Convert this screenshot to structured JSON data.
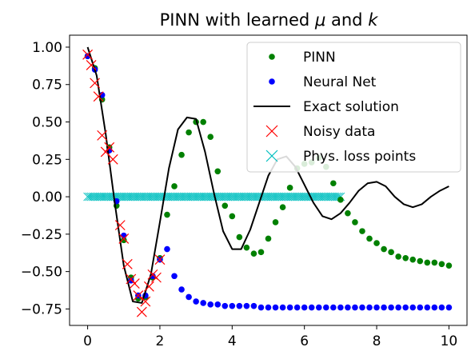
{
  "chart_data": {
    "type": "line",
    "title": "PINN with learned μ and k",
    "title_parts": {
      "prefix": "PINN with learned ",
      "mu": "μ",
      "mid": " and ",
      "k": "k"
    },
    "xlim": [
      -0.5,
      10.5
    ],
    "ylim": [
      -0.86,
      1.08
    ],
    "x_ticks": [
      0,
      2,
      4,
      6,
      8,
      10
    ],
    "x_tick_labels": [
      "0",
      "2",
      "4",
      "6",
      "8",
      "10"
    ],
    "y_ticks": [
      1.0,
      0.75,
      0.5,
      0.25,
      0.0,
      -0.25,
      -0.5,
      -0.75
    ],
    "y_tick_labels": [
      "1.00",
      "0.75",
      "0.50",
      "0.25",
      "0.00",
      "−0.25",
      "−0.50",
      "−0.75"
    ],
    "legend_position": "upper-right",
    "grid": false,
    "colors": {
      "pinn": "#008000",
      "nn": "#0000ff",
      "exact": "#000000",
      "noisy": "#ff0000",
      "phys": "#00bfbf"
    },
    "series": [
      {
        "name": "PINN",
        "marker": "dot",
        "x": [
          0,
          0.2,
          0.4,
          0.6,
          0.8,
          1.0,
          1.2,
          1.4,
          1.6,
          1.8,
          2.0,
          2.2,
          2.4,
          2.6,
          2.8,
          3.0,
          3.2,
          3.4,
          3.6,
          3.8,
          4.0,
          4.2,
          4.4,
          4.6,
          4.8,
          5.0,
          5.2,
          5.4,
          5.6,
          5.8,
          6.0,
          6.2,
          6.4,
          6.6,
          6.8,
          7.0,
          7.2,
          7.4,
          7.6,
          7.8,
          8.0,
          8.2,
          8.4,
          8.6,
          8.8,
          9.0,
          9.2,
          9.4,
          9.6,
          9.8,
          10.0
        ],
        "y": [
          0.94,
          0.86,
          0.65,
          0.33,
          -0.06,
          -0.29,
          -0.54,
          -0.68,
          -0.67,
          -0.54,
          -0.41,
          -0.12,
          0.07,
          0.28,
          0.43,
          0.5,
          0.5,
          0.4,
          0.17,
          -0.06,
          -0.13,
          -0.27,
          -0.34,
          -0.38,
          -0.37,
          -0.28,
          -0.17,
          -0.07,
          0.06,
          0.19,
          0.22,
          0.23,
          0.26,
          0.2,
          0.09,
          -0.02,
          -0.11,
          -0.17,
          -0.23,
          -0.28,
          -0.31,
          -0.35,
          -0.37,
          -0.4,
          -0.41,
          -0.42,
          -0.43,
          -0.44,
          -0.44,
          -0.45,
          -0.46
        ]
      },
      {
        "name": "Neural Net",
        "marker": "dot",
        "x": [
          0,
          0.2,
          0.4,
          0.6,
          0.8,
          1.0,
          1.2,
          1.4,
          1.6,
          1.8,
          2.0,
          2.2,
          2.4,
          2.6,
          2.8,
          3.0,
          3.2,
          3.4,
          3.6,
          3.8,
          4.0,
          4.2,
          4.4,
          4.6,
          4.8,
          5.0,
          5.2,
          5.4,
          5.6,
          5.8,
          6.0,
          6.2,
          6.4,
          6.6,
          6.8,
          7.0,
          7.2,
          7.4,
          7.6,
          7.8,
          8.0,
          8.2,
          8.4,
          8.6,
          8.8,
          9.0,
          9.2,
          9.4,
          9.6,
          9.8,
          10.0
        ],
        "y": [
          0.94,
          0.85,
          0.68,
          0.31,
          -0.03,
          -0.26,
          -0.56,
          -0.66,
          -0.66,
          -0.53,
          -0.42,
          -0.35,
          -0.53,
          -0.62,
          -0.67,
          -0.7,
          -0.71,
          -0.72,
          -0.72,
          -0.73,
          -0.73,
          -0.73,
          -0.73,
          -0.73,
          -0.74,
          -0.74,
          -0.74,
          -0.74,
          -0.74,
          -0.74,
          -0.74,
          -0.74,
          -0.74,
          -0.74,
          -0.74,
          -0.74,
          -0.74,
          -0.74,
          -0.74,
          -0.74,
          -0.74,
          -0.74,
          -0.74,
          -0.74,
          -0.74,
          -0.74,
          -0.74,
          -0.74,
          -0.74,
          -0.74,
          -0.74
        ]
      },
      {
        "name": "Exact solution",
        "marker": "line",
        "x": [
          0,
          0.25,
          0.5,
          0.75,
          1.0,
          1.25,
          1.5,
          1.75,
          2.0,
          2.25,
          2.5,
          2.75,
          3.0,
          3.25,
          3.5,
          3.75,
          4.0,
          4.25,
          4.5,
          4.75,
          5.0,
          5.25,
          5.5,
          5.75,
          6.0,
          6.25,
          6.5,
          6.75,
          7.0,
          7.25,
          7.5,
          7.75,
          8.0,
          8.25,
          8.5,
          8.75,
          9.0,
          9.25,
          9.5,
          9.75,
          10.0
        ],
        "y": [
          1.0,
          0.81,
          0.42,
          -0.04,
          -0.46,
          -0.7,
          -0.71,
          -0.52,
          -0.17,
          0.19,
          0.45,
          0.53,
          0.52,
          0.3,
          0.02,
          -0.23,
          -0.35,
          -0.35,
          -0.22,
          -0.04,
          0.14,
          0.25,
          0.27,
          0.2,
          0.08,
          -0.04,
          -0.13,
          -0.15,
          -0.11,
          -0.04,
          0.04,
          0.09,
          0.1,
          0.07,
          0.0,
          -0.05,
          -0.07,
          -0.05,
          0.0,
          0.04,
          0.07
        ]
      },
      {
        "name": "Noisy data",
        "marker": "x",
        "x": [
          0.0,
          0.1,
          0.2,
          0.3,
          0.4,
          0.5,
          0.6,
          0.7,
          0.9,
          1.0,
          1.1,
          1.2,
          1.3,
          1.4,
          1.5,
          1.6,
          1.7,
          1.8,
          1.9,
          2.0
        ],
        "y": [
          0.95,
          0.88,
          0.76,
          0.67,
          0.41,
          0.3,
          0.33,
          0.25,
          -0.19,
          -0.28,
          -0.45,
          -0.55,
          -0.58,
          -0.66,
          -0.77,
          -0.7,
          -0.6,
          -0.52,
          -0.54,
          -0.42
        ]
      },
      {
        "name": "Phys. loss points",
        "marker": "x",
        "x_start": 0,
        "x_end": 7,
        "count": 140,
        "y_value": 0.0
      }
    ]
  }
}
